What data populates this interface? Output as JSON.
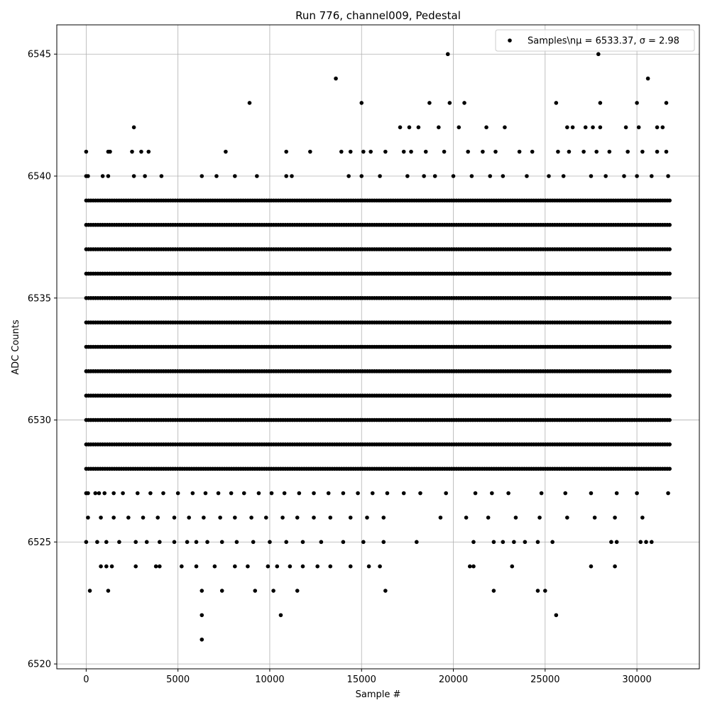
{
  "chart_data": {
    "type": "scatter",
    "title": "Run 776, channel009, Pedestal",
    "xlabel": "Sample #",
    "ylabel": "ADC Counts",
    "xlim": [
      -1600,
      33400
    ],
    "ylim": [
      6519.8,
      6546.2
    ],
    "xticks": [
      0,
      5000,
      10000,
      15000,
      20000,
      25000,
      30000
    ],
    "xtick_labels": [
      "0",
      "5000",
      "10000",
      "15000",
      "20000",
      "25000",
      "30000"
    ],
    "yticks": [
      6520,
      6525,
      6530,
      6535,
      6540,
      6545
    ],
    "ytick_labels": [
      "6520",
      "6525",
      "6530",
      "6535",
      "6540",
      "6545"
    ],
    "grid": true,
    "legend_position": "top-right",
    "series": [
      {
        "name": "Samples\\nμ = 6533.37, σ = 2.98",
        "marker": "circle",
        "color": "#000000",
        "dense_bands": [
          {
            "y": 6528,
            "x_range": [
              0,
              31800
            ]
          },
          {
            "y": 6529,
            "x_range": [
              0,
              31800
            ]
          },
          {
            "y": 6530,
            "x_range": [
              0,
              31800
            ]
          },
          {
            "y": 6531,
            "x_range": [
              0,
              31800
            ]
          },
          {
            "y": 6532,
            "x_range": [
              0,
              31800
            ]
          },
          {
            "y": 6533,
            "x_range": [
              0,
              31800
            ]
          },
          {
            "y": 6534,
            "x_range": [
              0,
              31800
            ]
          },
          {
            "y": 6535,
            "x_range": [
              0,
              31800
            ]
          },
          {
            "y": 6536,
            "x_range": [
              0,
              31800
            ]
          },
          {
            "y": 6537,
            "x_range": [
              0,
              31800
            ]
          },
          {
            "y": 6538,
            "x_range": [
              0,
              31800
            ]
          },
          {
            "y": 6539,
            "x_range": [
              0,
              31800
            ]
          }
        ],
        "points": [
          [
            0,
            6541
          ],
          [
            1200,
            6541
          ],
          [
            1300,
            6541
          ],
          [
            2500,
            6541
          ],
          [
            3000,
            6541
          ],
          [
            3400,
            6541
          ],
          [
            7600,
            6541
          ],
          [
            10900,
            6541
          ],
          [
            12200,
            6541
          ],
          [
            13900,
            6541
          ],
          [
            14400,
            6541
          ],
          [
            15100,
            6541
          ],
          [
            15500,
            6541
          ],
          [
            16300,
            6541
          ],
          [
            17300,
            6541
          ],
          [
            17700,
            6541
          ],
          [
            18500,
            6541
          ],
          [
            19500,
            6541
          ],
          [
            20800,
            6541
          ],
          [
            21600,
            6541
          ],
          [
            22300,
            6541
          ],
          [
            23600,
            6541
          ],
          [
            24300,
            6541
          ],
          [
            25700,
            6541
          ],
          [
            26300,
            6541
          ],
          [
            27100,
            6541
          ],
          [
            27800,
            6541
          ],
          [
            28500,
            6541
          ],
          [
            29500,
            6541
          ],
          [
            30300,
            6541
          ],
          [
            31100,
            6541
          ],
          [
            31600,
            6541
          ],
          [
            0,
            6540
          ],
          [
            100,
            6540
          ],
          [
            900,
            6540
          ],
          [
            1200,
            6540
          ],
          [
            2600,
            6540
          ],
          [
            3200,
            6540
          ],
          [
            4100,
            6540
          ],
          [
            6300,
            6540
          ],
          [
            7100,
            6540
          ],
          [
            8100,
            6540
          ],
          [
            9300,
            6540
          ],
          [
            10900,
            6540
          ],
          [
            11200,
            6540
          ],
          [
            14300,
            6540
          ],
          [
            15000,
            6540
          ],
          [
            16000,
            6540
          ],
          [
            17500,
            6540
          ],
          [
            18400,
            6540
          ],
          [
            19000,
            6540
          ],
          [
            20000,
            6540
          ],
          [
            21000,
            6540
          ],
          [
            22000,
            6540
          ],
          [
            22700,
            6540
          ],
          [
            24000,
            6540
          ],
          [
            25200,
            6540
          ],
          [
            26000,
            6540
          ],
          [
            27500,
            6540
          ],
          [
            28300,
            6540
          ],
          [
            29300,
            6540
          ],
          [
            30000,
            6540
          ],
          [
            30800,
            6540
          ],
          [
            31700,
            6540
          ],
          [
            2600,
            6542
          ],
          [
            17100,
            6542
          ],
          [
            17600,
            6542
          ],
          [
            18100,
            6542
          ],
          [
            19200,
            6542
          ],
          [
            20300,
            6542
          ],
          [
            21800,
            6542
          ],
          [
            22800,
            6542
          ],
          [
            26200,
            6542
          ],
          [
            26500,
            6542
          ],
          [
            27200,
            6542
          ],
          [
            27600,
            6542
          ],
          [
            28000,
            6542
          ],
          [
            29400,
            6542
          ],
          [
            30100,
            6542
          ],
          [
            31100,
            6542
          ],
          [
            31400,
            6542
          ],
          [
            8900,
            6543
          ],
          [
            15000,
            6543
          ],
          [
            18700,
            6543
          ],
          [
            19800,
            6543
          ],
          [
            20600,
            6543
          ],
          [
            25600,
            6543
          ],
          [
            28000,
            6543
          ],
          [
            30000,
            6543
          ],
          [
            31600,
            6543
          ],
          [
            13600,
            6544
          ],
          [
            30600,
            6544
          ],
          [
            19700,
            6545
          ],
          [
            27900,
            6545
          ],
          [
            0,
            6527
          ],
          [
            100,
            6527
          ],
          [
            500,
            6527
          ],
          [
            700,
            6527
          ],
          [
            1000,
            6527
          ],
          [
            1500,
            6527
          ],
          [
            2000,
            6527
          ],
          [
            2800,
            6527
          ],
          [
            3500,
            6527
          ],
          [
            4200,
            6527
          ],
          [
            5000,
            6527
          ],
          [
            5800,
            6527
          ],
          [
            6500,
            6527
          ],
          [
            7200,
            6527
          ],
          [
            7900,
            6527
          ],
          [
            8600,
            6527
          ],
          [
            9400,
            6527
          ],
          [
            10100,
            6527
          ],
          [
            10800,
            6527
          ],
          [
            11600,
            6527
          ],
          [
            12400,
            6527
          ],
          [
            13200,
            6527
          ],
          [
            14000,
            6527
          ],
          [
            14800,
            6527
          ],
          [
            15600,
            6527
          ],
          [
            16400,
            6527
          ],
          [
            17300,
            6527
          ],
          [
            18200,
            6527
          ],
          [
            19600,
            6527
          ],
          [
            21200,
            6527
          ],
          [
            22100,
            6527
          ],
          [
            23000,
            6527
          ],
          [
            24800,
            6527
          ],
          [
            26100,
            6527
          ],
          [
            27500,
            6527
          ],
          [
            28900,
            6527
          ],
          [
            30000,
            6527
          ],
          [
            31700,
            6527
          ],
          [
            100,
            6526
          ],
          [
            800,
            6526
          ],
          [
            1500,
            6526
          ],
          [
            2300,
            6526
          ],
          [
            3100,
            6526
          ],
          [
            3900,
            6526
          ],
          [
            4800,
            6526
          ],
          [
            5600,
            6526
          ],
          [
            6400,
            6526
          ],
          [
            7300,
            6526
          ],
          [
            8100,
            6526
          ],
          [
            9000,
            6526
          ],
          [
            9800,
            6526
          ],
          [
            10700,
            6526
          ],
          [
            11500,
            6526
          ],
          [
            12400,
            6526
          ],
          [
            13300,
            6526
          ],
          [
            14400,
            6526
          ],
          [
            15300,
            6526
          ],
          [
            16200,
            6526
          ],
          [
            19300,
            6526
          ],
          [
            20700,
            6526
          ],
          [
            21900,
            6526
          ],
          [
            23400,
            6526
          ],
          [
            24700,
            6526
          ],
          [
            26200,
            6526
          ],
          [
            27700,
            6526
          ],
          [
            28800,
            6526
          ],
          [
            30300,
            6526
          ],
          [
            0,
            6525
          ],
          [
            600,
            6525
          ],
          [
            1100,
            6525
          ],
          [
            1800,
            6525
          ],
          [
            2700,
            6525
          ],
          [
            3300,
            6525
          ],
          [
            4000,
            6525
          ],
          [
            4800,
            6525
          ],
          [
            5500,
            6525
          ],
          [
            6000,
            6525
          ],
          [
            6600,
            6525
          ],
          [
            7400,
            6525
          ],
          [
            8200,
            6525
          ],
          [
            9100,
            6525
          ],
          [
            10000,
            6525
          ],
          [
            10900,
            6525
          ],
          [
            11800,
            6525
          ],
          [
            12800,
            6525
          ],
          [
            14000,
            6525
          ],
          [
            15100,
            6525
          ],
          [
            16200,
            6525
          ],
          [
            18000,
            6525
          ],
          [
            21100,
            6525
          ],
          [
            22200,
            6525
          ],
          [
            22700,
            6525
          ],
          [
            23300,
            6525
          ],
          [
            23900,
            6525
          ],
          [
            24600,
            6525
          ],
          [
            25400,
            6525
          ],
          [
            28600,
            6525
          ],
          [
            28900,
            6525
          ],
          [
            30200,
            6525
          ],
          [
            30500,
            6525
          ],
          [
            30800,
            6525
          ],
          [
            800,
            6524
          ],
          [
            1100,
            6524
          ],
          [
            1400,
            6524
          ],
          [
            2700,
            6524
          ],
          [
            3800,
            6524
          ],
          [
            4000,
            6524
          ],
          [
            5200,
            6524
          ],
          [
            6000,
            6524
          ],
          [
            7000,
            6524
          ],
          [
            8100,
            6524
          ],
          [
            8800,
            6524
          ],
          [
            9900,
            6524
          ],
          [
            10400,
            6524
          ],
          [
            11100,
            6524
          ],
          [
            11800,
            6524
          ],
          [
            12600,
            6524
          ],
          [
            13300,
            6524
          ],
          [
            14400,
            6524
          ],
          [
            15400,
            6524
          ],
          [
            16000,
            6524
          ],
          [
            20900,
            6524
          ],
          [
            21100,
            6524
          ],
          [
            23200,
            6524
          ],
          [
            27500,
            6524
          ],
          [
            28800,
            6524
          ],
          [
            200,
            6523
          ],
          [
            1200,
            6523
          ],
          [
            6300,
            6523
          ],
          [
            7400,
            6523
          ],
          [
            9200,
            6523
          ],
          [
            10200,
            6523
          ],
          [
            11500,
            6523
          ],
          [
            16300,
            6523
          ],
          [
            22200,
            6523
          ],
          [
            24600,
            6523
          ],
          [
            25000,
            6523
          ],
          [
            6300,
            6522
          ],
          [
            10600,
            6522
          ],
          [
            25600,
            6522
          ],
          [
            6300,
            6521
          ]
        ]
      }
    ]
  }
}
